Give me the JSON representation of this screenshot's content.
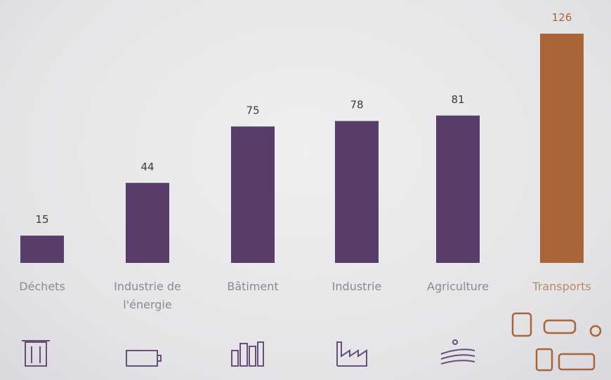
{
  "chart_data": {
    "type": "bar",
    "categories": [
      "Déchets",
      "Industrie de l'énergie",
      "Bâtiment",
      "Industrie",
      "Agriculture",
      "Transports"
    ],
    "values": [
      15,
      44,
      75,
      78,
      81,
      126
    ],
    "colors": [
      "#583d6b",
      "#583d6b",
      "#583d6b",
      "#583d6b",
      "#583d6b",
      "#a9643a"
    ]
  }
}
